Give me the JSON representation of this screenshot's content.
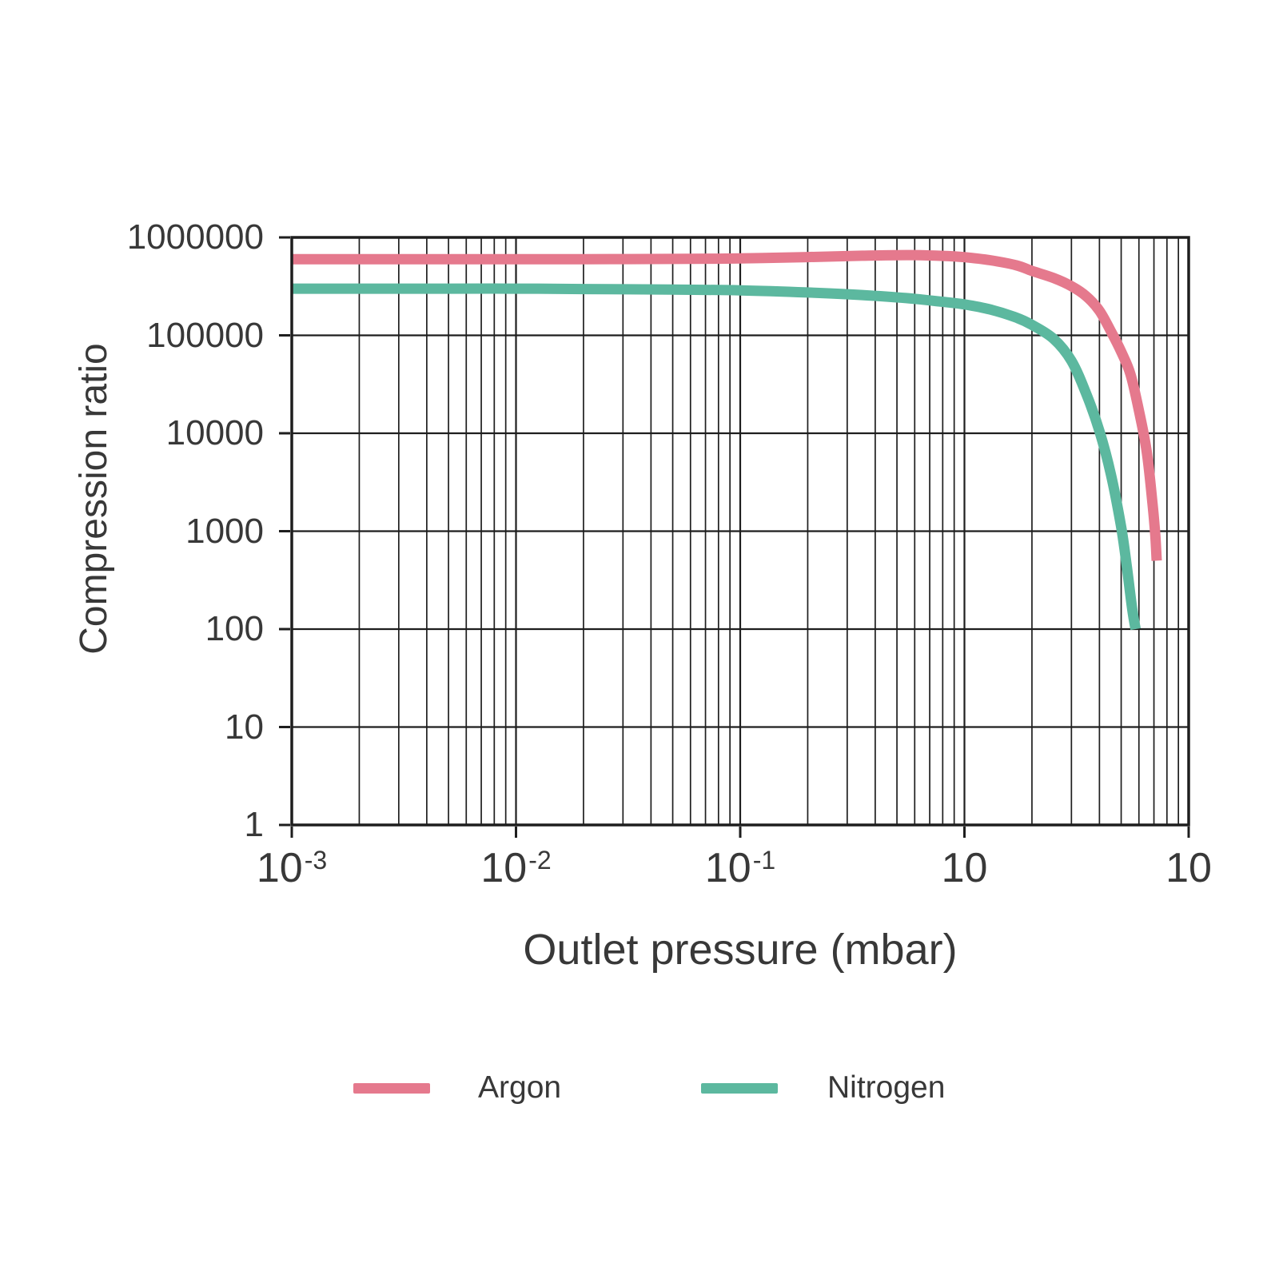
{
  "chart_data": {
    "type": "line",
    "title": "",
    "xlabel": "Outlet pressure (mbar)",
    "ylabel": "Compression ratio",
    "x_scale": "log",
    "y_scale": "log",
    "xlim": [
      0.001,
      10
    ],
    "ylim": [
      1,
      1000000
    ],
    "grid": {
      "vertical_minor_multipliers": [
        2,
        3,
        4,
        5,
        6,
        7,
        8,
        9
      ],
      "horizontal_minors": false,
      "grid_color": "#1e1e1e"
    },
    "x_ticks": [
      {
        "value": 0.001,
        "base": "10",
        "exp": "-3"
      },
      {
        "value": 0.01,
        "base": "10",
        "exp": "-2"
      },
      {
        "value": 0.1,
        "base": "10",
        "exp": "-1"
      },
      {
        "value": 1,
        "base": "10",
        "exp": ""
      },
      {
        "value": 10,
        "base": "10",
        "exp": ""
      }
    ],
    "y_ticks": [
      {
        "value": 1000000,
        "label": "1000000"
      },
      {
        "value": 100000,
        "label": "100000"
      },
      {
        "value": 10000,
        "label": "10000"
      },
      {
        "value": 1000,
        "label": "1000"
      },
      {
        "value": 100,
        "label": "100"
      },
      {
        "value": 10,
        "label": "10"
      },
      {
        "value": 1,
        "label": "1"
      }
    ],
    "series": [
      {
        "name": "Argon",
        "color": "#e5798d",
        "points": [
          [
            0.001,
            600000
          ],
          [
            0.002,
            600000
          ],
          [
            0.005,
            600000
          ],
          [
            0.01,
            600000
          ],
          [
            0.02,
            600000
          ],
          [
            0.05,
            603000
          ],
          [
            0.1,
            610000
          ],
          [
            0.2,
            630000
          ],
          [
            0.35,
            650000
          ],
          [
            0.55,
            660000
          ],
          [
            0.8,
            648000
          ],
          [
            1.0,
            628000
          ],
          [
            1.3,
            585000
          ],
          [
            1.7,
            520000
          ],
          [
            2.0,
            455000
          ],
          [
            2.5,
            385000
          ],
          [
            3.0,
            318000
          ],
          [
            3.5,
            250000
          ],
          [
            4.0,
            178000
          ],
          [
            4.5,
            110000
          ],
          [
            5.0,
            68000
          ],
          [
            5.5,
            40000
          ],
          [
            6.0,
            17000
          ],
          [
            6.5,
            6500
          ],
          [
            6.9,
            1900
          ],
          [
            7.1,
            900
          ],
          [
            7.2,
            500
          ]
        ]
      },
      {
        "name": "Nitrogen",
        "color": "#5cb89f",
        "points": [
          [
            0.001,
            300000
          ],
          [
            0.002,
            300000
          ],
          [
            0.005,
            300000
          ],
          [
            0.01,
            300000
          ],
          [
            0.02,
            297000
          ],
          [
            0.05,
            293000
          ],
          [
            0.1,
            288000
          ],
          [
            0.2,
            274000
          ],
          [
            0.35,
            258000
          ],
          [
            0.55,
            240000
          ],
          [
            0.8,
            220000
          ],
          [
            1.0,
            207000
          ],
          [
            1.3,
            184000
          ],
          [
            1.7,
            152000
          ],
          [
            2.0,
            128000
          ],
          [
            2.5,
            92000
          ],
          [
            3.0,
            55000
          ],
          [
            3.5,
            25000
          ],
          [
            4.0,
            10500
          ],
          [
            4.5,
            3800
          ],
          [
            5.0,
            1100
          ],
          [
            5.3,
            430
          ],
          [
            5.6,
            160
          ],
          [
            5.8,
            100
          ]
        ]
      }
    ],
    "legend": {
      "position": "bottom",
      "items": [
        {
          "label": "Argon",
          "color": "#e5798d"
        },
        {
          "label": "Nitrogen",
          "color": "#5cb89f"
        }
      ]
    }
  }
}
